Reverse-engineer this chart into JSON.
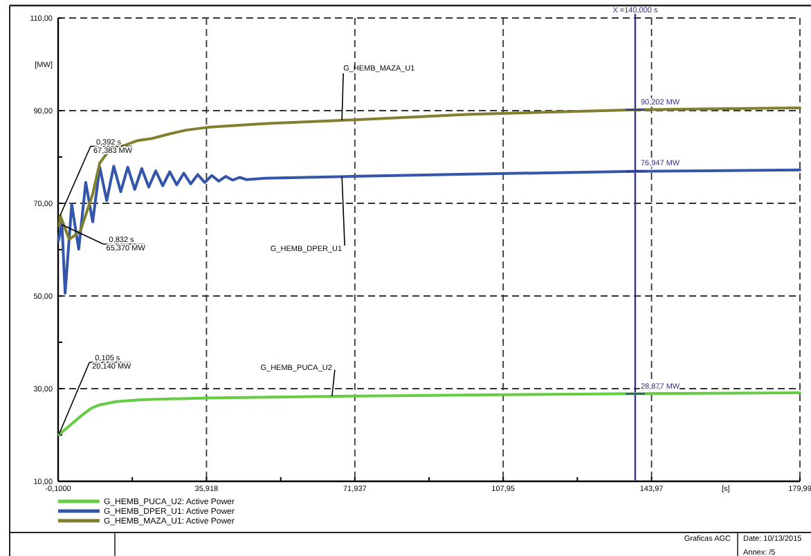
{
  "chart_data": {
    "type": "line",
    "xlabel": "[s]",
    "ylabel": "[MW]",
    "xlim": [
      -0.1,
      179.99
    ],
    "ylim": [
      10,
      110
    ],
    "xticks": [
      {
        "value": -0.1,
        "label": "-0,1000"
      },
      {
        "value": 17.909,
        "label": null
      },
      {
        "value": 35.918,
        "label": "35,918"
      },
      {
        "value": 53.93,
        "label": null
      },
      {
        "value": 71.937,
        "label": "71,937"
      },
      {
        "value": 89.94,
        "label": null
      },
      {
        "value": 107.95,
        "label": "107,95"
      },
      {
        "value": 125.96,
        "label": null
      },
      {
        "value": 143.97,
        "label": "143,97"
      },
      {
        "value": 179.99,
        "label": "179,99"
      }
    ],
    "yticks": [
      {
        "value": 10,
        "label": "10,00"
      },
      {
        "value": 20,
        "label": null
      },
      {
        "value": 30,
        "label": "30,00"
      },
      {
        "value": 40,
        "label": null
      },
      {
        "value": 50,
        "label": "50,00"
      },
      {
        "value": 60,
        "label": null
      },
      {
        "value": 70,
        "label": "70,00"
      },
      {
        "value": 80,
        "label": null
      },
      {
        "value": 90,
        "label": "90,00"
      },
      {
        "value": 110,
        "label": "110,00"
      }
    ],
    "grid": true,
    "legend": "bottom left",
    "line_style": "solid",
    "marker": "none",
    "series": [
      {
        "name": "G_HEMB_PUCA_U2: Active Power",
        "color": "#66cc44",
        "x": [
          0.1,
          2,
          4,
          6,
          8,
          10,
          14,
          20,
          36,
          72,
          108,
          140,
          179.99
        ],
        "values": [
          20.1,
          21.5,
          23,
          24.5,
          25.8,
          26.5,
          27.2,
          27.6,
          28,
          28.4,
          28.7,
          28.9,
          29.1
        ]
      },
      {
        "name": "G_HEMB_DPER_U1: Active Power",
        "color": "#3355aa",
        "x": [
          0,
          0.8,
          1.6,
          3.2,
          4.9,
          6.6,
          8.3,
          10,
          11.7,
          13.4,
          15.1,
          16.8,
          18.5,
          20.2,
          21.9,
          23.6,
          25.3,
          27,
          28.7,
          30.4,
          32.1,
          33.8,
          35.5,
          37.2,
          38.9,
          40.6,
          42.3,
          44,
          45.7,
          50,
          70,
          100,
          140,
          179.99
        ],
        "values": [
          62,
          66,
          50.6,
          69.8,
          60.1,
          74.5,
          66,
          77.8,
          70.6,
          78,
          72.5,
          77.8,
          73,
          77.5,
          73.5,
          77,
          73.8,
          76.8,
          74,
          76.5,
          74.2,
          76.2,
          74.5,
          76,
          74.8,
          75.8,
          75,
          75.6,
          75.1,
          75.4,
          75.8,
          76.3,
          76.9,
          77.2
        ]
      },
      {
        "name": "G_HEMB_MAZA_U1: Active Power",
        "color": "#808030",
        "x": [
          0.2,
          0.4,
          2.6,
          5.3,
          8.3,
          10,
          12.7,
          16,
          19,
          22.7,
          27,
          31,
          36.2,
          50,
          68.8,
          100,
          140,
          179.99
        ],
        "values": [
          65.2,
          67.4,
          62.2,
          64,
          72,
          78.7,
          81.9,
          82.5,
          83.5,
          84,
          85,
          85.8,
          86.4,
          87.2,
          87.9,
          89.2,
          90.2,
          90.6
        ]
      }
    ],
    "ref_lines": [
      {
        "axis": "x",
        "value": 140,
        "label": "X =140,000 s",
        "color": "#333388"
      }
    ],
    "annotations": [
      {
        "text": "0,392 s\n67,383 MW",
        "x": 0.392,
        "y": 67.383
      },
      {
        "text": "0,832 s\n65,370 MW",
        "x": 0.832,
        "y": 65.37
      },
      {
        "text": "0,105 s\n20,140 MW",
        "x": 0.105,
        "y": 20.14
      },
      {
        "text": "G_HEMB_MAZA_U1",
        "x": 68.8,
        "y": 87.9
      },
      {
        "text": "G_HEMB_DPER_U1",
        "x": 68.8,
        "y": 75.8
      },
      {
        "text": "G_HEMB_PUCA_U2",
        "x": 66.4,
        "y": 28.4
      },
      {
        "text": "90,202 MW",
        "x": 140,
        "y": 90.202
      },
      {
        "text": "76,947 MW",
        "x": 140,
        "y": 76.947
      },
      {
        "text": "28,877 MW",
        "x": 140,
        "y": 28.877
      },
      "Graficas AGC",
      "Date: 10/13/2015",
      "Annex: /5"
    ]
  }
}
